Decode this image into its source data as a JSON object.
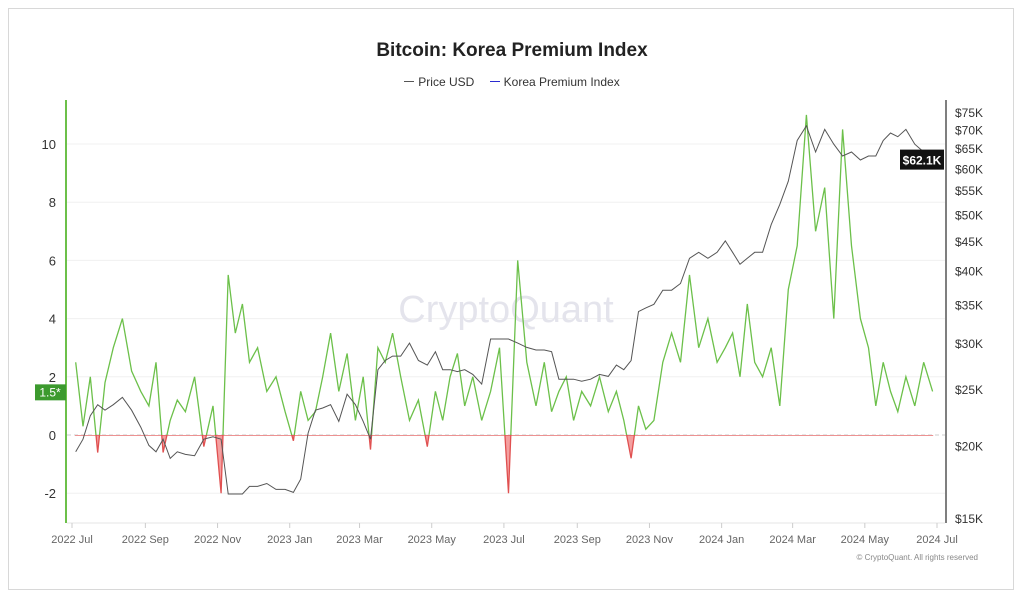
{
  "chart_data": {
    "type": "line",
    "title": "Bitcoin: Korea Premium Index",
    "legend": [
      "Price USD",
      "Korea Premium Index"
    ],
    "legend_placement": "top-center",
    "colors": {
      "price": "#555555",
      "premium_pos": "#6cc04a",
      "premium_neg": "#e05050",
      "premium_legend": "#2b2bd0",
      "badge": "#3c9a2e"
    },
    "x_ticks": [
      "2022 Jul",
      "2022 Sep",
      "2022 Nov",
      "2023 Jan",
      "2023 Mar",
      "2023 May",
      "2023 Jul",
      "2023 Sep",
      "2023 Nov",
      "2024 Jan",
      "2024 Mar",
      "2024 May",
      "2024 Jul"
    ],
    "y_left": {
      "ticks": [
        "-2",
        "0",
        "2",
        "4",
        "6",
        "8",
        "10"
      ],
      "range": [
        -3,
        11.5
      ]
    },
    "y_right": {
      "scale": "log",
      "ticks": [
        "$15K",
        "$20K",
        "$25K",
        "$30K",
        "$35K",
        "$40K",
        "$45K",
        "$50K",
        "$55K",
        "$60K",
        "$65K",
        "$70K",
        "$75K"
      ],
      "range_usd_k": [
        15,
        78
      ]
    },
    "current_price_label": "$62.1K",
    "current_premium_label": "1.5*",
    "watermark": "CryptoQuant",
    "copyright": "© CryptoQuant. All rights reserved",
    "months": [
      {
        "month": "2022-07",
        "premium": [
          2.5,
          0.3,
          2.0,
          -0.6,
          1.8
        ],
        "price": [
          19.5,
          20.5,
          22.5,
          23.5,
          23
        ]
      },
      {
        "month": "2022-08",
        "premium": [
          3.0,
          4.0,
          2.2,
          1.5
        ],
        "price": [
          23.5,
          24.2,
          23,
          21.5
        ]
      },
      {
        "month": "2022-09",
        "premium": [
          1.0,
          2.5,
          -0.6,
          0.5,
          1.2
        ],
        "price": [
          20,
          19.5,
          20.5,
          19,
          19.5
        ]
      },
      {
        "month": "2022-10",
        "premium": [
          0.8,
          2.0,
          -0.4,
          1.0
        ],
        "price": [
          19.3,
          19.2,
          20.5,
          20.7
        ]
      },
      {
        "month": "2022-11",
        "premium": [
          -2.0,
          5.5,
          3.5,
          4.5,
          2.5
        ],
        "price": [
          20.5,
          16.5,
          16.5,
          16.5,
          17
        ]
      },
      {
        "month": "2022-12",
        "premium": [
          3.0,
          1.5,
          2.0,
          0.8
        ],
        "price": [
          17,
          17.2,
          16.8,
          16.8
        ]
      },
      {
        "month": "2023-01",
        "premium": [
          -0.2,
          1.5,
          0.5,
          0.8,
          2.0
        ],
        "price": [
          16.6,
          17.5,
          21,
          23,
          23.2
        ]
      },
      {
        "month": "2023-02",
        "premium": [
          3.5,
          1.5,
          2.8,
          0.5
        ],
        "price": [
          23.5,
          22,
          24.5,
          23.5
        ]
      },
      {
        "month": "2023-03",
        "premium": [
          2.0,
          -0.5,
          3.0,
          2.5,
          3.5
        ],
        "price": [
          22,
          20.5,
          27,
          28,
          28.5
        ]
      },
      {
        "month": "2023-04",
        "premium": [
          2.0,
          0.5,
          1.2,
          -0.4
        ],
        "price": [
          28.5,
          30,
          28,
          27.5
        ]
      },
      {
        "month": "2023-05",
        "premium": [
          1.5,
          0.5,
          2.0,
          2.8,
          1.0
        ],
        "price": [
          29,
          27,
          27,
          26.8,
          27
        ]
      },
      {
        "month": "2023-06",
        "premium": [
          2.0,
          0.5,
          1.5,
          3.0
        ],
        "price": [
          26.5,
          25.5,
          30.5,
          30.5
        ]
      },
      {
        "month": "2023-07",
        "premium": [
          -2.0,
          6.0,
          2.5,
          1.0
        ],
        "price": [
          30.5,
          30,
          29.5,
          29.2
        ]
      },
      {
        "month": "2023-08",
        "premium": [
          2.5,
          0.8,
          1.5,
          2.0,
          0.5
        ],
        "price": [
          29.2,
          29,
          26,
          26,
          26
        ]
      },
      {
        "month": "2023-09",
        "premium": [
          1.5,
          1.0,
          2.0,
          0.8
        ],
        "price": [
          25.8,
          26,
          26.5,
          26.3
        ]
      },
      {
        "month": "2023-10",
        "premium": [
          1.5,
          0.5,
          -0.8,
          1.0,
          0.2
        ],
        "price": [
          27.5,
          27,
          28,
          34,
          34.5
        ]
      },
      {
        "month": "2023-11",
        "premium": [
          0.5,
          2.5,
          3.5,
          2.5
        ],
        "price": [
          35,
          37,
          37,
          38
        ]
      },
      {
        "month": "2023-12",
        "premium": [
          5.5,
          3.0,
          4.0,
          2.5
        ],
        "price": [
          42,
          43,
          42,
          43
        ]
      },
      {
        "month": "2024-01",
        "premium": [
          3.0,
          3.5,
          2.0,
          4.5,
          2.5
        ],
        "price": [
          45,
          43,
          41,
          42,
          43
        ]
      },
      {
        "month": "2024-02",
        "premium": [
          2.0,
          3.0,
          1.0,
          5.0
        ],
        "price": [
          43,
          48,
          52,
          57
        ]
      },
      {
        "month": "2024-03",
        "premium": [
          6.5,
          11.0,
          7.0,
          8.5
        ],
        "price": [
          67,
          71,
          64,
          70
        ]
      },
      {
        "month": "2024-04",
        "premium": [
          4.0,
          10.5,
          6.5,
          4.0
        ],
        "price": [
          66,
          63,
          64,
          62
        ]
      },
      {
        "month": "2024-05",
        "premium": [
          3.0,
          1.0,
          2.5,
          1.5,
          0.8
        ],
        "price": [
          63,
          63,
          67,
          69,
          68
        ]
      },
      {
        "month": "2024-06",
        "premium": [
          2.0,
          1.0,
          2.5,
          1.5
        ],
        "price": [
          70,
          66,
          64,
          62.1
        ]
      }
    ]
  }
}
